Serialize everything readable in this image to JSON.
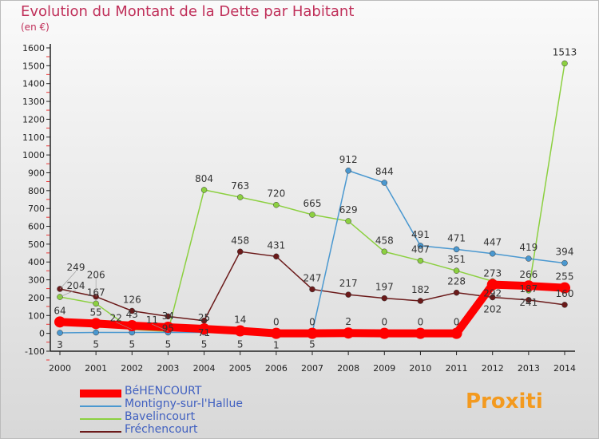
{
  "title": "Evolution du Montant de la Dette par Habitant",
  "subtitle": "(en €)",
  "logo": "Proxiti",
  "chart_data": {
    "type": "line",
    "x": [
      2000,
      2001,
      2002,
      2003,
      2004,
      2005,
      2006,
      2007,
      2008,
      2009,
      2010,
      2011,
      2012,
      2013,
      2014
    ],
    "ylim": [
      -100,
      1600
    ],
    "yticks": [
      -100,
      0,
      100,
      200,
      300,
      400,
      500,
      600,
      700,
      800,
      900,
      1000,
      1100,
      1200,
      1300,
      1400,
      1500,
      1600
    ],
    "series": [
      {
        "name": "BéHENCOURT",
        "color": "#ff0000",
        "values": [
          64,
          55,
          43,
          34,
          25,
          14,
          0,
          0,
          2,
          0,
          0,
          0,
          273,
          266,
          255
        ]
      },
      {
        "name": "Montigny-sur-l'Hallue",
        "color": "#4a98d0",
        "values": [
          3,
          5,
          5,
          5,
          5,
          5,
          1,
          5,
          912,
          844,
          491,
          471,
          447,
          419,
          394
        ]
      },
      {
        "name": "Bavelincourt",
        "color": "#8cd040",
        "values": [
          204,
          167,
          22,
          11,
          804,
          763,
          720,
          665,
          629,
          458,
          407,
          351,
          292,
          241,
          1513
        ]
      },
      {
        "name": "Fréchencourt",
        "color": "#6b1a1a",
        "values": [
          249,
          206,
          126,
          95,
          71,
          458,
          431,
          247,
          217,
          197,
          182,
          228,
          202,
          187,
          160
        ]
      }
    ]
  }
}
